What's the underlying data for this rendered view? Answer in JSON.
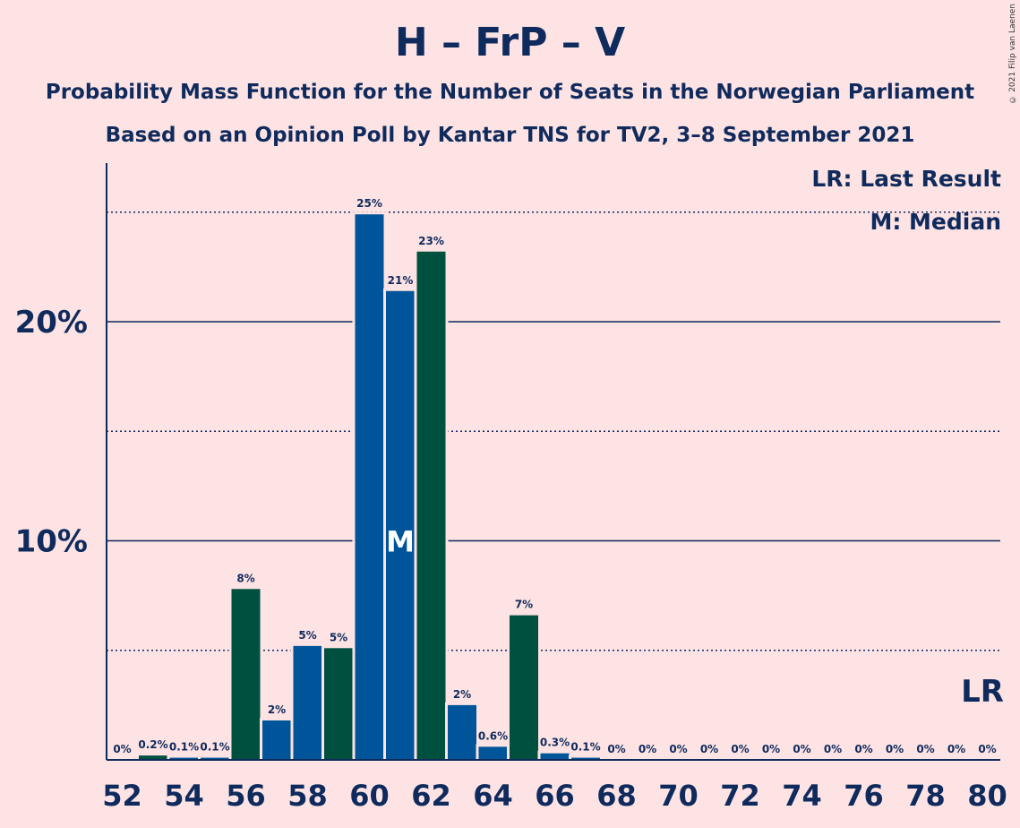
{
  "title": "H – FrP – V",
  "subtitle1": "Probability Mass Function for the Number of Seats in the Norwegian Parliament",
  "subtitle2": "Based on an Opinion Poll by Kantar TNS for TV2, 3–8 September 2021",
  "copyright": "© 2021 Filip van Laenen",
  "legend": {
    "last_result": "LR: Last Result",
    "median": "M: Median"
  },
  "colors": {
    "background": "#fde3e3",
    "blue": "#00559a",
    "green": "#00503f",
    "text": "#0f2a5c"
  },
  "chart_data": {
    "type": "bar",
    "x": [
      52,
      53,
      54,
      55,
      56,
      57,
      58,
      59,
      60,
      61,
      62,
      63,
      64,
      65,
      66,
      67,
      68,
      69,
      70,
      71,
      72,
      73,
      74,
      75,
      76,
      77,
      78,
      79,
      80
    ],
    "values": [
      0,
      0.2,
      0.1,
      0.1,
      7.8,
      1.8,
      5.2,
      5.1,
      24.9,
      21.4,
      23.2,
      2.5,
      0.6,
      6.6,
      0.3,
      0.1,
      0,
      0,
      0,
      0,
      0,
      0,
      0,
      0,
      0,
      0,
      0,
      0,
      0
    ],
    "labels": [
      "0%",
      "0.2%",
      "0.1%",
      "0.1%",
      "8%",
      "2%",
      "5%",
      "5%",
      "25%",
      "21%",
      "23%",
      "2%",
      "0.6%",
      "7%",
      "0.3%",
      "0.1%",
      "0%",
      "0%",
      "0%",
      "0%",
      "0%",
      "0%",
      "0%",
      "0%",
      "0%",
      "0%",
      "0%",
      "0%",
      "0%"
    ],
    "bar_colors": [
      "blue",
      "green",
      "blue",
      "blue",
      "green",
      "blue",
      "blue",
      "green",
      "blue",
      "blue",
      "green",
      "blue",
      "blue",
      "green",
      "blue",
      "blue",
      "blue",
      "blue",
      "blue",
      "blue",
      "blue",
      "blue",
      "blue",
      "blue",
      "blue",
      "blue",
      "blue",
      "blue",
      "blue"
    ],
    "xticks": [
      "52",
      "54",
      "56",
      "58",
      "60",
      "62",
      "64",
      "66",
      "68",
      "70",
      "72",
      "74",
      "76",
      "78",
      "80"
    ],
    "yticks": [
      "10%",
      "20%"
    ],
    "ytick_values": [
      10,
      20
    ],
    "y_gridlines_dotted": [
      5,
      15,
      25
    ],
    "ylim": [
      0,
      27
    ],
    "median_x": 61,
    "median_label": "M",
    "last_result_x": 80,
    "last_result_label": "LR"
  }
}
